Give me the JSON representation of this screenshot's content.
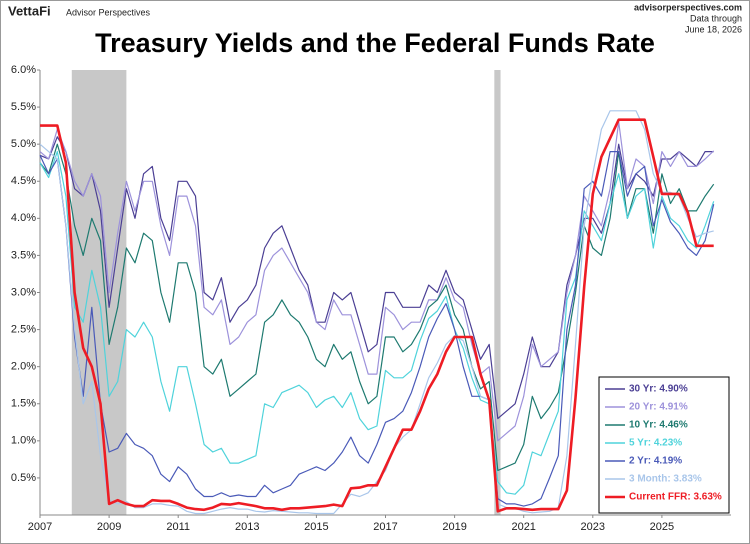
{
  "header": {
    "brand": "VettaFi",
    "publisher": "Advisor Perspectives",
    "site": "advisorperspectives.com",
    "data_through": "Data through",
    "date": "June 18, 2026"
  },
  "chart_data": {
    "type": "line",
    "title": "Treasury Yields and the Federal Funds Rate",
    "x": [
      2007,
      2007.25,
      2007.5,
      2007.75,
      2008,
      2008.25,
      2008.5,
      2008.75,
      2009,
      2009.25,
      2009.5,
      2009.75,
      2010,
      2010.25,
      2010.5,
      2010.75,
      2011,
      2011.25,
      2011.5,
      2011.75,
      2012,
      2012.25,
      2012.5,
      2012.75,
      2013,
      2013.25,
      2013.5,
      2013.75,
      2014,
      2014.25,
      2014.5,
      2014.75,
      2015,
      2015.25,
      2015.5,
      2015.75,
      2016,
      2016.25,
      2016.5,
      2016.75,
      2017,
      2017.25,
      2017.5,
      2017.75,
      2018,
      2018.25,
      2018.5,
      2018.75,
      2019,
      2019.25,
      2019.5,
      2019.75,
      2020,
      2020.25,
      2020.5,
      2020.75,
      2021,
      2021.25,
      2021.5,
      2021.75,
      2022,
      2022.25,
      2022.5,
      2022.75,
      2023,
      2023.25,
      2023.5,
      2023.75,
      2024,
      2024.25,
      2024.5,
      2024.75,
      2025,
      2025.25,
      2025.5,
      2025.75,
      2026,
      2026.25,
      2026.5
    ],
    "series": [
      {
        "name": "30 Yr: 4.90%",
        "color": "#4b3f94",
        "width": 1.2,
        "values": [
          4.85,
          4.8,
          5.1,
          4.9,
          4.4,
          4.3,
          4.6,
          4.1,
          2.8,
          3.6,
          4.4,
          4.0,
          4.6,
          4.7,
          4.0,
          3.7,
          4.5,
          4.5,
          4.3,
          3.0,
          2.9,
          3.2,
          2.6,
          2.8,
          2.9,
          3.1,
          3.6,
          3.8,
          3.9,
          3.6,
          3.3,
          3.1,
          2.6,
          2.6,
          3.0,
          2.9,
          3.0,
          2.6,
          2.2,
          2.3,
          3.0,
          3.0,
          2.8,
          2.8,
          2.8,
          3.1,
          3.0,
          3.3,
          3.0,
          2.9,
          2.5,
          2.1,
          2.3,
          1.3,
          1.4,
          1.5,
          1.9,
          2.4,
          2.0,
          2.0,
          2.2,
          3.1,
          3.5,
          4.0,
          4.0,
          3.8,
          4.2,
          5.0,
          4.4,
          4.6,
          4.5,
          4.3,
          4.8,
          4.8,
          4.9,
          4.8,
          4.7,
          4.9,
          4.9
        ]
      },
      {
        "name": "20 Yr: 4.91%",
        "color": "#9d92db",
        "width": 1.2,
        "values": [
          4.9,
          4.8,
          5.2,
          4.9,
          4.5,
          4.3,
          4.6,
          4.3,
          3.0,
          3.8,
          4.5,
          4.1,
          4.5,
          4.5,
          3.9,
          3.5,
          4.3,
          4.3,
          3.9,
          2.8,
          2.7,
          2.9,
          2.3,
          2.4,
          2.6,
          2.7,
          3.3,
          3.5,
          3.6,
          3.4,
          3.2,
          3.0,
          2.6,
          2.5,
          2.9,
          2.7,
          2.7,
          2.3,
          1.9,
          1.9,
          2.8,
          2.7,
          2.5,
          2.6,
          2.6,
          2.9,
          2.9,
          3.2,
          2.9,
          2.8,
          2.3,
          1.9,
          2.0,
          1.0,
          1.1,
          1.2,
          1.6,
          2.3,
          2.0,
          2.1,
          2.2,
          3.0,
          3.5,
          4.3,
          4.1,
          3.9,
          4.4,
          5.3,
          4.4,
          4.8,
          4.7,
          4.2,
          4.9,
          4.7,
          4.9,
          4.7,
          4.7,
          4.8,
          4.91
        ]
      },
      {
        "name": "10 Yr: 4.46%",
        "color": "#1e7a70",
        "width": 1.2,
        "values": [
          4.75,
          4.6,
          5.0,
          4.6,
          3.9,
          3.5,
          4.0,
          3.7,
          2.3,
          2.8,
          3.6,
          3.4,
          3.8,
          3.7,
          3.0,
          2.6,
          3.4,
          3.4,
          3.0,
          2.0,
          1.9,
          2.1,
          1.6,
          1.7,
          1.8,
          1.9,
          2.6,
          2.7,
          2.9,
          2.7,
          2.6,
          2.4,
          2.1,
          2.0,
          2.3,
          2.1,
          2.2,
          1.8,
          1.5,
          1.6,
          2.4,
          2.4,
          2.2,
          2.3,
          2.5,
          2.8,
          2.9,
          3.1,
          2.7,
          2.5,
          2.0,
          1.7,
          1.8,
          0.6,
          0.65,
          0.7,
          0.95,
          1.6,
          1.3,
          1.45,
          1.65,
          2.3,
          3.0,
          3.9,
          3.6,
          3.5,
          4.0,
          4.9,
          4.0,
          4.4,
          4.4,
          3.8,
          4.6,
          4.2,
          4.4,
          4.1,
          4.1,
          4.3,
          4.46
        ]
      },
      {
        "name": "5 Yr: 4.23%",
        "color": "#4fd3db",
        "width": 1.2,
        "values": [
          4.75,
          4.55,
          4.9,
          4.3,
          2.8,
          2.6,
          3.3,
          2.8,
          1.6,
          1.8,
          2.5,
          2.4,
          2.6,
          2.4,
          1.8,
          1.4,
          2.0,
          2.0,
          1.5,
          0.95,
          0.85,
          0.9,
          0.7,
          0.7,
          0.75,
          0.8,
          1.5,
          1.45,
          1.65,
          1.7,
          1.75,
          1.65,
          1.45,
          1.55,
          1.6,
          1.45,
          1.65,
          1.3,
          1.15,
          1.2,
          1.95,
          1.85,
          1.85,
          1.95,
          2.35,
          2.65,
          2.75,
          2.95,
          2.5,
          2.25,
          1.85,
          1.55,
          1.5,
          0.45,
          0.3,
          0.28,
          0.4,
          0.85,
          0.8,
          1.1,
          1.4,
          2.9,
          3.2,
          4.1,
          3.9,
          3.7,
          4.2,
          4.6,
          4.0,
          4.3,
          4.4,
          3.6,
          4.3,
          4.0,
          3.9,
          3.7,
          3.6,
          3.9,
          4.23
        ]
      },
      {
        "name": "2 Yr: 4.19%",
        "color": "#4a5ab8",
        "width": 1.2,
        "values": [
          4.85,
          4.6,
          4.8,
          3.9,
          2.4,
          1.6,
          2.8,
          1.5,
          0.85,
          0.9,
          1.1,
          0.95,
          0.9,
          0.8,
          0.55,
          0.45,
          0.65,
          0.55,
          0.35,
          0.25,
          0.25,
          0.3,
          0.25,
          0.27,
          0.25,
          0.25,
          0.4,
          0.3,
          0.35,
          0.4,
          0.55,
          0.6,
          0.65,
          0.6,
          0.7,
          0.85,
          1.05,
          0.8,
          0.7,
          0.95,
          1.25,
          1.3,
          1.4,
          1.65,
          2.0,
          2.4,
          2.65,
          2.85,
          2.5,
          2.0,
          1.6,
          1.6,
          1.55,
          0.22,
          0.15,
          0.15,
          0.12,
          0.15,
          0.22,
          0.5,
          0.8,
          2.5,
          3.1,
          4.4,
          4.5,
          4.3,
          4.9,
          4.9,
          4.3,
          4.6,
          4.7,
          3.9,
          4.25,
          3.95,
          3.8,
          3.6,
          3.5,
          3.7,
          4.19
        ]
      },
      {
        "name": "3 Month: 3.83%",
        "color": "#a9c6ea",
        "width": 1.2,
        "values": [
          5.0,
          4.9,
          4.8,
          3.9,
          2.5,
          1.5,
          1.8,
          0.8,
          0.2,
          0.15,
          0.18,
          0.1,
          0.1,
          0.15,
          0.15,
          0.13,
          0.12,
          0.05,
          0.02,
          0.02,
          0.05,
          0.08,
          0.1,
          0.08,
          0.08,
          0.05,
          0.04,
          0.06,
          0.05,
          0.04,
          0.03,
          0.03,
          0.02,
          0.02,
          0.02,
          0.15,
          0.28,
          0.25,
          0.3,
          0.45,
          0.6,
          0.9,
          1.05,
          1.15,
          1.5,
          1.85,
          2.05,
          2.3,
          2.42,
          2.35,
          2.0,
          1.6,
          1.55,
          0.15,
          0.1,
          0.09,
          0.05,
          0.03,
          0.04,
          0.05,
          0.1,
          0.8,
          2.3,
          3.9,
          4.6,
          5.2,
          5.45,
          5.45,
          5.45,
          5.45,
          5.2,
          4.6,
          4.35,
          4.35,
          4.3,
          4.0,
          3.75,
          3.8,
          3.83
        ]
      },
      {
        "name": "Current FFR: 3.63%",
        "color": "#ee1c24",
        "width": 2.6,
        "values": [
          5.25,
          5.25,
          5.25,
          4.75,
          3.0,
          2.25,
          2.0,
          1.5,
          0.15,
          0.2,
          0.15,
          0.12,
          0.12,
          0.2,
          0.19,
          0.19,
          0.15,
          0.1,
          0.08,
          0.07,
          0.1,
          0.15,
          0.14,
          0.16,
          0.14,
          0.12,
          0.09,
          0.09,
          0.07,
          0.09,
          0.09,
          0.1,
          0.11,
          0.12,
          0.14,
          0.12,
          0.36,
          0.37,
          0.4,
          0.4,
          0.65,
          0.9,
          1.15,
          1.15,
          1.4,
          1.7,
          1.9,
          2.2,
          2.4,
          2.4,
          2.4,
          1.9,
          1.55,
          0.05,
          0.09,
          0.09,
          0.08,
          0.07,
          0.08,
          0.08,
          0.08,
          0.33,
          1.58,
          3.08,
          4.33,
          4.83,
          5.08,
          5.33,
          5.33,
          5.33,
          5.33,
          4.83,
          4.33,
          4.33,
          4.33,
          4.08,
          3.63,
          3.63,
          3.63
        ]
      }
    ],
    "recessions": [
      [
        2007.92,
        2009.5
      ],
      [
        2020.15,
        2020.33
      ]
    ],
    "recession_color": "#c8c8c8",
    "xlim": [
      2007,
      2027
    ],
    "xticks": [
      2007,
      2009,
      2011,
      2013,
      2015,
      2017,
      2019,
      2021,
      2023,
      2025
    ],
    "ylim": [
      0,
      6
    ],
    "yticks": [
      {
        "value": 0.5,
        "label": "0.5%"
      },
      {
        "value": 1,
        "label": "1.0%"
      },
      {
        "value": 1.5,
        "label": "1.5%"
      },
      {
        "value": 2,
        "label": "2.0%"
      },
      {
        "value": 2.5,
        "label": "2.5%"
      },
      {
        "value": 3,
        "label": "3.0%"
      },
      {
        "value": 3.5,
        "label": "3.5%"
      },
      {
        "value": 4,
        "label": "4.0%"
      },
      {
        "value": 4.5,
        "label": "4.5%"
      },
      {
        "value": 5,
        "label": "5.0%"
      },
      {
        "value": 5.5,
        "label": "5.5%"
      },
      {
        "value": 6,
        "label": "6.0%"
      }
    ],
    "grid": false,
    "legend": "lower right"
  }
}
